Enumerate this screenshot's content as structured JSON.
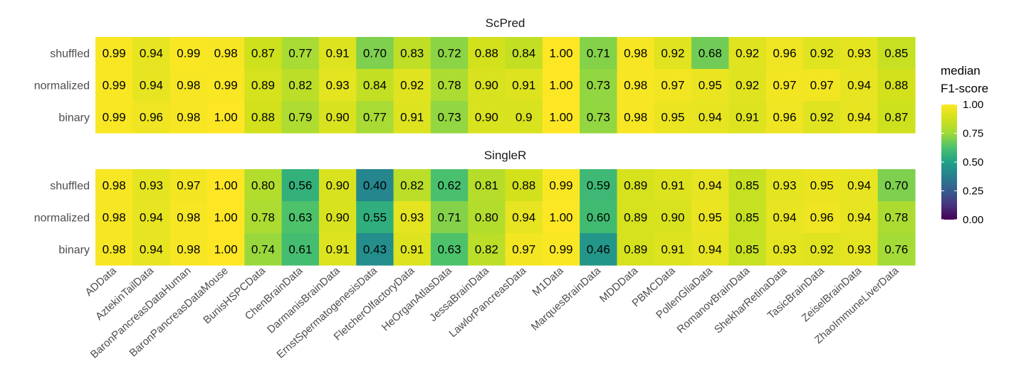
{
  "chart_data": {
    "type": "heatmap",
    "legend": {
      "title_line1": "median",
      "title_line2": "F1-score",
      "ticks": [
        "1.00",
        "0.75",
        "0.50",
        "0.25",
        "0.00"
      ],
      "tick_values": [
        1.0,
        0.75,
        0.5,
        0.25,
        0.0
      ],
      "range": [
        0,
        1
      ],
      "colormap": "viridis"
    },
    "datasets": [
      "ADData",
      "AztekinTailData",
      "BaronPancreasDataHuman",
      "BaronPancreasDataMouse",
      "BunisHSPCData",
      "ChenBrainData",
      "DarmanisBrainData",
      "ErnstSpermatogenesisData",
      "FletcherOlfactoryData",
      "HeOrganAtlasData",
      "JessaBrainData",
      "LawlorPancreasData",
      "M1Data",
      "MarquesBrainData",
      "MDDData",
      "PBMCData",
      "PollenGliaData",
      "RomanovBrainData",
      "ShekharRetinaData",
      "TasicBrainData",
      "ZeiselBrainData",
      "ZhaoImmuneLiverData"
    ],
    "panels": [
      {
        "title": "ScPred",
        "rows": [
          {
            "name": "shuffled",
            "labels": [
              "0.99",
              "0.94",
              "0.99",
              "0.98",
              "0.87",
              "0.77",
              "0.91",
              "0.70",
              "0.83",
              "0.72",
              "0.88",
              "0.84",
              "1.00",
              "0.71",
              "0.98",
              "0.92",
              "0.68",
              "0.92",
              "0.96",
              "0.92",
              "0.93",
              "0.85"
            ]
          },
          {
            "name": "normalized",
            "labels": [
              "0.99",
              "0.94",
              "0.98",
              "0.99",
              "0.89",
              "0.82",
              "0.93",
              "0.84",
              "0.92",
              "0.78",
              "0.90",
              "0.91",
              "1.00",
              "0.73",
              "0.98",
              "0.97",
              "0.95",
              "0.92",
              "0.97",
              "0.97",
              "0.94",
              "0.88"
            ]
          },
          {
            "name": "binary",
            "labels": [
              "0.99",
              "0.96",
              "0.98",
              "1.00",
              "0.88",
              "0.79",
              "0.90",
              "0.77",
              "0.91",
              "0.73",
              "0.90",
              "0.9",
              "1.00",
              "0.73",
              "0.98",
              "0.95",
              "0.94",
              "0.91",
              "0.96",
              "0.92",
              "0.94",
              "0.87"
            ]
          }
        ]
      },
      {
        "title": "SingleR",
        "rows": [
          {
            "name": "shuffled",
            "labels": [
              "0.98",
              "0.93",
              "0.97",
              "1.00",
              "0.80",
              "0.56",
              "0.90",
              "0.40",
              "0.82",
              "0.62",
              "0.81",
              "0.88",
              "0.99",
              "0.59",
              "0.89",
              "0.91",
              "0.94",
              "0.85",
              "0.93",
              "0.95",
              "0.94",
              "0.70"
            ]
          },
          {
            "name": "normalized",
            "labels": [
              "0.98",
              "0.94",
              "0.98",
              "1.00",
              "0.78",
              "0.63",
              "0.90",
              "0.55",
              "0.93",
              "0.71",
              "0.80",
              "0.94",
              "1.00",
              "0.60",
              "0.89",
              "0.90",
              "0.95",
              "0.85",
              "0.94",
              "0.96",
              "0.94",
              "0.78"
            ]
          },
          {
            "name": "binary",
            "labels": [
              "0.98",
              "0.94",
              "0.98",
              "1.00",
              "0.74",
              "0.61",
              "0.91",
              "0.43",
              "0.91",
              "0.63",
              "0.82",
              "0.97",
              "0.99",
              "0.46",
              "0.89",
              "0.91",
              "0.94",
              "0.85",
              "0.93",
              "0.92",
              "0.93",
              "0.76"
            ]
          }
        ]
      }
    ]
  }
}
